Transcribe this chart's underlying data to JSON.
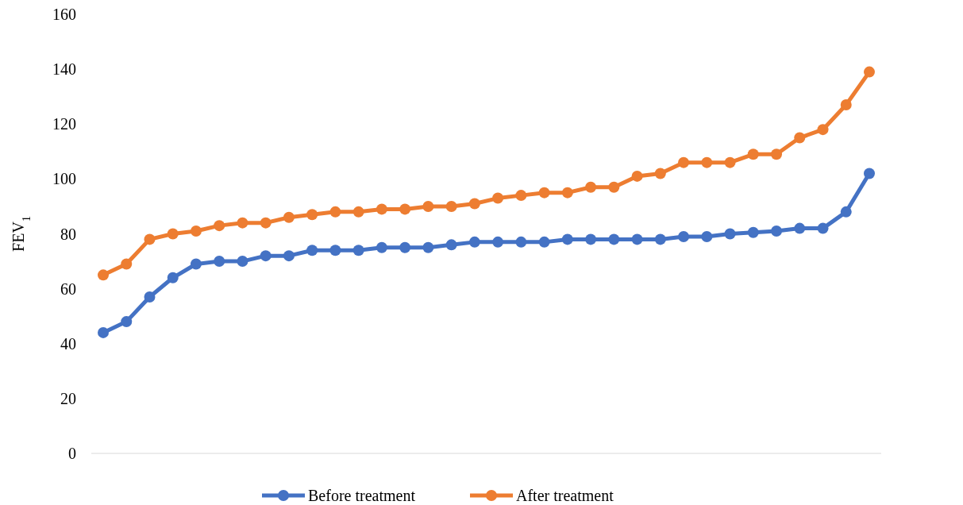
{
  "chart_data": {
    "type": "line",
    "ylabel": "FEV$_{1}$",
    "categories": [
      null,
      null,
      null,
      null,
      null,
      null,
      null,
      null,
      null,
      null,
      null,
      null,
      null,
      null,
      null,
      null,
      null,
      null,
      null,
      null,
      null,
      null,
      null,
      null,
      null,
      null,
      null,
      null,
      null,
      null,
      null,
      null,
      null,
      null
    ],
    "series": [
      {
        "name": "Before treatment",
        "color": "#4472c4",
        "values": [
          44,
          48,
          57,
          64,
          69,
          70,
          70,
          72,
          72,
          74,
          74,
          74,
          75,
          75,
          75,
          76,
          77,
          77,
          77,
          77,
          78,
          78,
          78,
          78,
          78,
          79,
          79,
          80,
          80.5,
          81,
          82,
          82,
          88,
          102
        ]
      },
      {
        "name": "After treatment",
        "color": "#ed7d31",
        "values": [
          65,
          69,
          78,
          80,
          81,
          83,
          84,
          84,
          86,
          87,
          88,
          88,
          89,
          89,
          90,
          90,
          91,
          93,
          94,
          95,
          95,
          97,
          97,
          101,
          102,
          106,
          106,
          106,
          109,
          109,
          115,
          118,
          127,
          139
        ]
      }
    ],
    "ylim": [
      0,
      160
    ],
    "yticks": [
      0,
      20,
      40,
      60,
      80,
      100,
      120,
      140,
      160
    ],
    "grid": false,
    "legend": "bottom",
    "marker": "circle",
    "line_style": "solid"
  }
}
